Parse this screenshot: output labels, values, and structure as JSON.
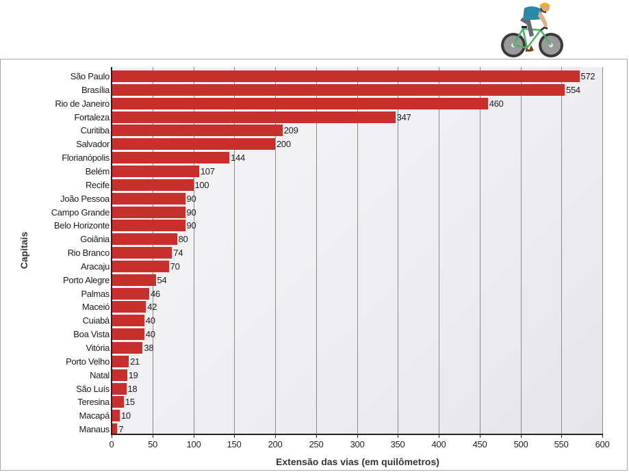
{
  "chart_data": {
    "type": "bar",
    "orientation": "horizontal",
    "title": "",
    "xlabel": "Extensão das vias (em quilômetros)",
    "ylabel": "Capitais",
    "xlim": [
      0,
      600
    ],
    "xticks": [
      0,
      50,
      100,
      150,
      200,
      250,
      300,
      350,
      400,
      450,
      500,
      550,
      600
    ],
    "grid": "vertical",
    "bar_color": "#c8302e",
    "categories": [
      "São Paulo",
      "Brasília",
      "Rio de Janeiro",
      "Fortaleza",
      "Curitiba",
      "Salvador",
      "Florianópolis",
      "Belém",
      "Recife",
      "João Pessoa",
      "Campo Grande",
      "Belo Horizonte",
      "Goiânia",
      "Rio Branco",
      "Aracaju",
      "Porto Alegre",
      "Palmas",
      "Maceió",
      "Cuiabá",
      "Boa Vista",
      "Vitória",
      "Porto Velho",
      "Natal",
      "São Luís",
      "Teresina",
      "Macapá",
      "Manaus"
    ],
    "values": [
      572,
      554,
      460,
      347,
      209,
      200,
      144,
      107,
      100,
      90,
      90,
      90,
      80,
      74,
      70,
      54,
      46,
      42,
      40,
      40,
      38,
      21,
      19,
      18,
      15,
      10,
      7
    ]
  },
  "labels": {
    "xlabel": "Extensão das vias (em quilômetros)",
    "ylabel": "Capitais",
    "xticks": [
      "0",
      "50",
      "100",
      "150",
      "200",
      "250",
      "300",
      "350",
      "400",
      "450",
      "500",
      "550",
      "600"
    ]
  },
  "decoration": {
    "icon": "cyclist-icon"
  }
}
